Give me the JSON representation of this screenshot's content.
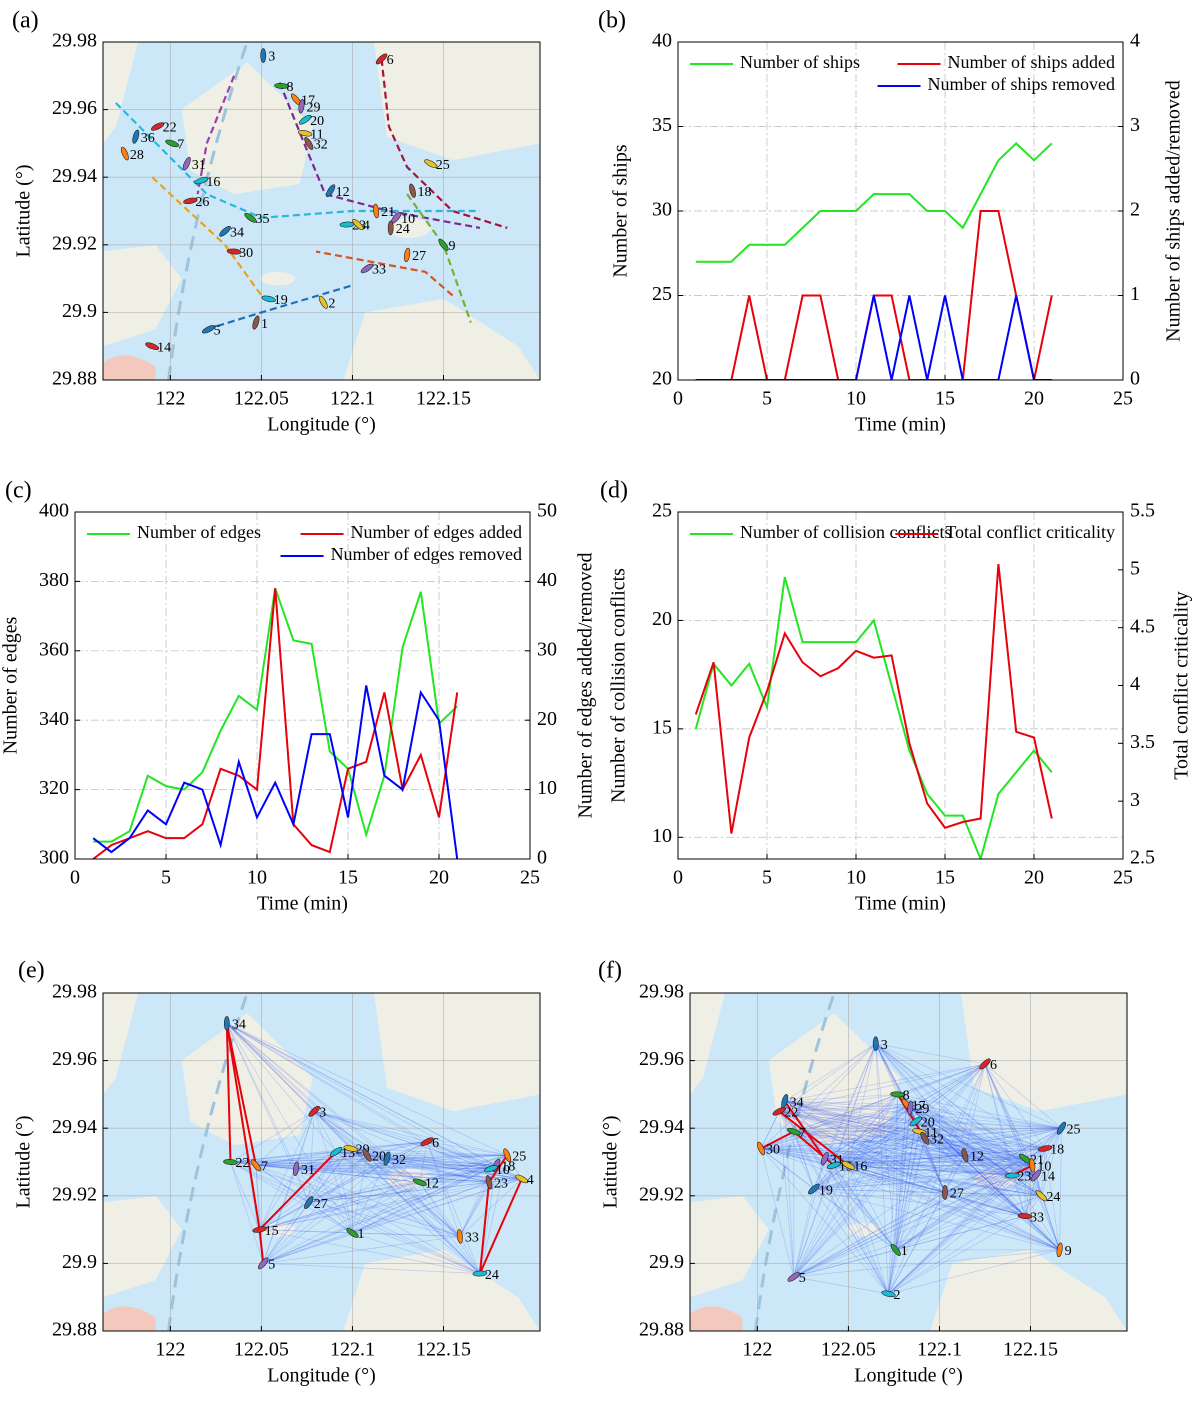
{
  "chart_data": [
    {
      "type": "map",
      "panel_label": "(a)",
      "xlabel": "Longitude (°)",
      "ylabel": "Latitude (°)",
      "xlim": [
        121.963,
        122.203
      ],
      "ylim": [
        29.88,
        29.98
      ],
      "xticks": [
        122,
        122.05,
        122.1,
        122.15
      ],
      "yticks": [
        29.88,
        29.9,
        29.92,
        29.94,
        29.96,
        29.98
      ],
      "grid": true,
      "marker_colors": [
        "#1f77b4",
        "#d62728",
        "#2ca02c",
        "#ff7f0e",
        "#9467bd",
        "#17becf",
        "#e6c229",
        "#8c564b"
      ],
      "ships": {
        "labels": [
          3,
          6,
          8,
          17,
          29,
          20,
          11,
          32,
          36,
          22,
          7,
          28,
          31,
          16,
          25,
          18,
          12,
          26,
          35,
          21,
          10,
          23,
          4,
          24,
          34,
          30,
          9,
          27,
          33,
          19,
          2,
          1,
          5,
          14
        ],
        "x": [
          122.051,
          122.116,
          122.061,
          122.069,
          122.072,
          122.074,
          122.074,
          122.076,
          121.981,
          121.993,
          122.001,
          121.975,
          122.009,
          122.017,
          122.143,
          122.133,
          122.088,
          122.011,
          122.044,
          122.113,
          122.124,
          122.097,
          122.103,
          122.121,
          122.03,
          122.035,
          122.15,
          122.13,
          122.108,
          122.054,
          122.084,
          122.047,
          122.021,
          121.99
        ],
        "y": [
          29.976,
          29.975,
          29.967,
          29.963,
          29.961,
          29.957,
          29.953,
          29.95,
          29.952,
          29.955,
          29.95,
          29.947,
          29.944,
          29.939,
          29.944,
          29.936,
          29.936,
          29.933,
          29.928,
          29.93,
          29.928,
          29.926,
          29.926,
          29.925,
          29.924,
          29.918,
          29.92,
          29.917,
          29.913,
          29.904,
          29.903,
          29.897,
          29.895,
          29.89
        ]
      },
      "tracks": [
        {
          "color": "#7b2a8c",
          "x": [
            122.06,
            122.075,
            122.085,
            122.12,
            122.17
          ],
          "y": [
            29.968,
            29.948,
            29.935,
            29.93,
            29.925
          ]
        },
        {
          "color": "#a3143c",
          "x": [
            122.116,
            122.12,
            122.13,
            122.155,
            122.185
          ],
          "y": [
            29.975,
            29.955,
            29.943,
            29.93,
            29.925
          ]
        },
        {
          "color": "#2eb6d9",
          "x": [
            121.97,
            122.02,
            122.05,
            122.1,
            122.17
          ],
          "y": [
            29.962,
            29.935,
            29.928,
            29.93,
            29.93
          ]
        },
        {
          "color": "#e8a317",
          "x": [
            121.99,
            122.03,
            122.05
          ],
          "y": [
            29.94,
            29.92,
            29.905
          ]
        },
        {
          "color": "#7cae2a",
          "x": [
            122.13,
            122.15,
            122.165
          ],
          "y": [
            29.935,
            29.92,
            29.897
          ]
        },
        {
          "color": "#1f6fb4",
          "x": [
            122.02,
            122.05,
            122.1
          ],
          "y": [
            29.895,
            29.9,
            29.908
          ]
        },
        {
          "color": "#9b3fa8",
          "x": [
            122.035,
            122.02,
            122.015
          ],
          "y": [
            29.97,
            29.95,
            29.935
          ]
        },
        {
          "color": "#d9541e",
          "x": [
            122.155,
            122.14,
            122.08
          ],
          "y": [
            29.905,
            29.912,
            29.918
          ]
        }
      ]
    },
    {
      "type": "line",
      "panel_label": "(b)",
      "xlabel": "Time (min)",
      "ylabel": "Number of ships",
      "y2label": "Number of ships added/removed",
      "x": [
        1,
        2,
        3,
        4,
        5,
        6,
        7,
        8,
        9,
        10,
        11,
        12,
        13,
        14,
        15,
        16,
        17,
        18,
        19,
        20,
        21
      ],
      "xlim": [
        0,
        25
      ],
      "xticks": [
        0,
        5,
        10,
        15,
        20,
        25
      ],
      "ylim": [
        20,
        40
      ],
      "yticks": [
        20,
        25,
        30,
        35,
        40
      ],
      "y2lim": [
        0,
        4
      ],
      "y2ticks": [
        0,
        1,
        2,
        3,
        4
      ],
      "grid": true,
      "series": [
        {
          "name": "Number of ships",
          "color": "#22e622",
          "axis": "y",
          "legend_loc": "upper left",
          "values": [
            27,
            27,
            27,
            28,
            28,
            28,
            29,
            30,
            30,
            30,
            31,
            31,
            31,
            30,
            30,
            29,
            31,
            33,
            34,
            33,
            34
          ]
        },
        {
          "name": "Number of ships added",
          "color": "#e8000b",
          "axis": "y2",
          "legend_loc": "upper right",
          "values": [
            0,
            0,
            0,
            1,
            0,
            0,
            1,
            1,
            0,
            0,
            1,
            1,
            0,
            0,
            0,
            0,
            2,
            2,
            1,
            0,
            1
          ]
        },
        {
          "name": "Number of ships removed",
          "color": "#0000ff",
          "axis": "y2",
          "legend_loc": "upper right",
          "values": [
            0,
            0,
            0,
            0,
            0,
            0,
            0,
            0,
            0,
            0,
            1,
            0,
            1,
            0,
            1,
            0,
            0,
            0,
            1,
            0,
            0
          ]
        }
      ]
    },
    {
      "type": "line",
      "panel_label": "(c)",
      "xlabel": "Time (min)",
      "ylabel": "Number of edges",
      "y2label": "Number of edges added/removed",
      "x": [
        1,
        2,
        3,
        4,
        5,
        6,
        7,
        8,
        9,
        10,
        11,
        12,
        13,
        14,
        15,
        16,
        17,
        18,
        19,
        20,
        21
      ],
      "xlim": [
        0,
        25
      ],
      "xticks": [
        0,
        5,
        10,
        15,
        20,
        25
      ],
      "ylim": [
        300,
        400
      ],
      "yticks": [
        300,
        320,
        340,
        360,
        380,
        400
      ],
      "y2lim": [
        0,
        50
      ],
      "y2ticks": [
        0,
        10,
        20,
        30,
        40,
        50
      ],
      "grid": true,
      "series": [
        {
          "name": "Number of edges",
          "color": "#22e622",
          "axis": "y",
          "legend_loc": "upper left",
          "values": [
            305,
            305,
            308,
            324,
            321,
            320,
            325,
            337,
            347,
            343,
            378,
            363,
            362,
            331,
            326,
            307,
            324,
            361,
            377,
            339,
            344
          ]
        },
        {
          "name": "Number of edges added",
          "color": "#e8000b",
          "axis": "y2",
          "legend_loc": "upper right",
          "values": [
            0,
            2,
            3,
            4,
            3,
            3,
            5,
            13,
            12,
            10,
            39,
            5,
            2,
            1,
            13,
            14,
            24,
            10,
            15,
            6,
            24
          ]
        },
        {
          "name": "Number of edges removed",
          "color": "#0000ff",
          "axis": "y2",
          "legend_loc": "upper right",
          "values": [
            3,
            1,
            3,
            7,
            5,
            11,
            10,
            2,
            14,
            6,
            11,
            5,
            18,
            18,
            6,
            25,
            12,
            10,
            24,
            20,
            0
          ]
        }
      ]
    },
    {
      "type": "line",
      "panel_label": "(d)",
      "xlabel": "Time (min)",
      "ylabel": "Number of collision conflicts",
      "y2label": "Total conflict criticality",
      "x": [
        1,
        2,
        3,
        4,
        5,
        6,
        7,
        8,
        9,
        10,
        11,
        12,
        13,
        14,
        15,
        16,
        17,
        18,
        19,
        20,
        21
      ],
      "xlim": [
        0,
        25
      ],
      "xticks": [
        0,
        5,
        10,
        15,
        20,
        25
      ],
      "ylim": [
        9,
        25
      ],
      "yticks": [
        10,
        15,
        20,
        25
      ],
      "y2lim": [
        2.5,
        5.5
      ],
      "y2ticks": [
        2.5,
        3,
        3.5,
        4,
        4.5,
        5,
        5.5
      ],
      "grid": true,
      "series": [
        {
          "name": "Number of collision conflicts",
          "color": "#22e622",
          "axis": "y",
          "legend_loc": "upper left",
          "values": [
            15,
            18,
            17,
            18,
            16,
            22,
            19,
            19,
            19,
            19,
            20,
            17,
            14,
            12,
            11,
            11,
            9,
            12,
            13,
            14,
            13
          ]
        },
        {
          "name": "Total conflict criticality",
          "color": "#e8000b",
          "axis": "y2",
          "legend_loc": "upper right",
          "values": [
            3.75,
            4.2,
            2.72,
            3.55,
            3.95,
            4.45,
            4.2,
            4.08,
            4.15,
            4.3,
            4.24,
            4.26,
            3.5,
            2.98,
            2.77,
            2.82,
            2.85,
            5.05,
            3.6,
            3.55,
            2.85
          ]
        }
      ]
    },
    {
      "type": "map",
      "panel_label": "(e)",
      "xlabel": "Longitude (°)",
      "ylabel": "Latitude (°)",
      "xlim": [
        121.963,
        122.203
      ],
      "ylim": [
        29.88,
        29.98
      ],
      "xticks": [
        122,
        122.05,
        122.1,
        122.15
      ],
      "yticks": [
        29.88,
        29.9,
        29.92,
        29.94,
        29.96,
        29.98
      ],
      "grid": true,
      "network": true,
      "marker_colors": [
        "#1f77b4",
        "#d62728",
        "#2ca02c",
        "#ff7f0e",
        "#9467bd",
        "#17becf",
        "#e6c229",
        "#8c564b"
      ],
      "ships": {
        "labels": [
          34,
          3,
          22,
          7,
          31,
          13,
          29,
          20,
          32,
          6,
          12,
          25,
          18,
          10,
          4,
          23,
          27,
          15,
          1,
          33,
          5,
          24
        ],
        "x": [
          122.031,
          122.079,
          122.033,
          122.047,
          122.069,
          122.091,
          122.099,
          122.108,
          122.119,
          122.141,
          122.137,
          122.185,
          122.179,
          122.176,
          122.193,
          122.175,
          122.076,
          122.049,
          122.1,
          122.159,
          122.051,
          122.17
        ],
        "y": [
          29.971,
          29.945,
          29.93,
          29.929,
          29.928,
          29.933,
          29.934,
          29.932,
          29.931,
          29.936,
          29.924,
          29.932,
          29.929,
          29.928,
          29.925,
          29.924,
          29.918,
          29.91,
          29.909,
          29.908,
          29.9,
          29.897
        ]
      },
      "conflicts": [
        [
          34,
          22
        ],
        [
          34,
          15
        ],
        [
          34,
          7
        ],
        [
          15,
          13
        ],
        [
          15,
          5
        ],
        [
          24,
          23
        ],
        [
          24,
          4
        ],
        [
          23,
          25
        ]
      ]
    },
    {
      "type": "map",
      "panel_label": "(f)",
      "xlabel": "Longitude (°)",
      "ylabel": "Latitude (°)",
      "xlim": [
        121.963,
        122.203
      ],
      "ylim": [
        29.88,
        29.98
      ],
      "xticks": [
        122,
        122.05,
        122.1,
        122.15
      ],
      "yticks": [
        29.88,
        29.9,
        29.92,
        29.94,
        29.96,
        29.98
      ],
      "grid": true,
      "network": true,
      "marker_colors": [
        "#1f77b4",
        "#d62728",
        "#2ca02c",
        "#ff7f0e",
        "#9467bd",
        "#17becf",
        "#e6c229",
        "#8c564b"
      ],
      "ships": {
        "labels": [
          3,
          6,
          8,
          17,
          29,
          20,
          11,
          32,
          34,
          22,
          7,
          30,
          31,
          15,
          16,
          12,
          25,
          18,
          21,
          10,
          14,
          23,
          24,
          27,
          19,
          33,
          1,
          9,
          5,
          2
        ],
        "x": [
          122.065,
          122.125,
          122.077,
          122.082,
          122.084,
          122.087,
          122.089,
          122.092,
          122.015,
          122.012,
          122.02,
          122.002,
          122.037,
          122.042,
          122.05,
          122.114,
          122.167,
          122.158,
          122.147,
          122.151,
          122.153,
          122.14,
          122.156,
          122.103,
          122.031,
          122.147,
          122.076,
          122.166,
          122.02,
          122.072
        ],
        "y": [
          29.965,
          29.959,
          29.95,
          29.947,
          29.946,
          29.942,
          29.939,
          29.937,
          29.948,
          29.945,
          29.939,
          29.934,
          29.931,
          29.929,
          29.929,
          29.932,
          29.94,
          29.934,
          29.931,
          29.929,
          29.926,
          29.926,
          29.92,
          29.921,
          29.922,
          29.914,
          29.904,
          29.904,
          29.896,
          29.891
        ]
      },
      "conflicts": [
        [
          30,
          7
        ],
        [
          34,
          31
        ],
        [
          22,
          16
        ],
        [
          7,
          15
        ],
        [
          8,
          32
        ],
        [
          20,
          11
        ],
        [
          10,
          23
        ]
      ]
    }
  ]
}
